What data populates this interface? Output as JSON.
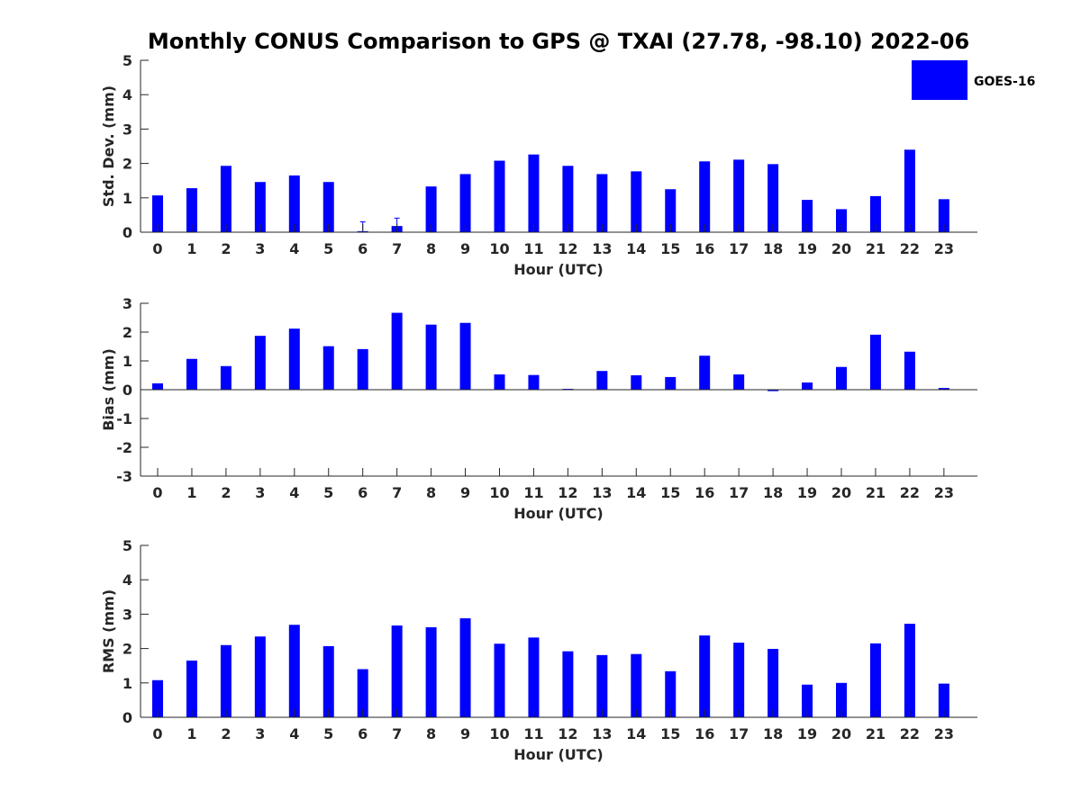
{
  "figure": {
    "title": "Monthly CONUS Comparison to GPS @ TXAI (27.78, -98.10) 2022-06",
    "bar_color": "#0000ff",
    "axis_color": "#262626"
  },
  "legend": {
    "label": "GOES-16",
    "placement": "top-right"
  },
  "chart_data": [
    {
      "type": "bar",
      "ylabel": "Std. Dev. (mm)",
      "xlabel": "Hour (UTC)",
      "ylim": [
        0,
        5
      ],
      "yticks": [
        0,
        1,
        2,
        3,
        4,
        5
      ],
      "categories": [
        "0",
        "1",
        "2",
        "3",
        "4",
        "5",
        "6",
        "7",
        "8",
        "9",
        "10",
        "11",
        "12",
        "13",
        "14",
        "15",
        "16",
        "17",
        "18",
        "19",
        "20",
        "21",
        "22",
        "23"
      ],
      "series": [
        {
          "name": "GOES-16",
          "values": [
            1.07,
            1.28,
            1.93,
            1.46,
            1.65,
            1.46,
            0.03,
            0.18,
            1.33,
            1.69,
            2.08,
            2.26,
            1.93,
            1.69,
            1.77,
            1.25,
            2.06,
            2.11,
            1.98,
            0.94,
            0.67,
            1.05,
            2.4,
            0.96
          ],
          "error_high": [
            0,
            0,
            0,
            0,
            0,
            0,
            0.27,
            0.23,
            0,
            0,
            0,
            0,
            0,
            0,
            0,
            0,
            0,
            0,
            0,
            0,
            0,
            0,
            0,
            0
          ]
        }
      ],
      "grid": false,
      "legend": true
    },
    {
      "type": "bar",
      "ylabel": "Bias (mm)",
      "xlabel": "Hour (UTC)",
      "ylim": [
        -3,
        3
      ],
      "yticks": [
        -3,
        -2,
        -1,
        0,
        1,
        2,
        3
      ],
      "categories": [
        "0",
        "1",
        "2",
        "3",
        "4",
        "5",
        "6",
        "7",
        "8",
        "9",
        "10",
        "11",
        "12",
        "13",
        "14",
        "15",
        "16",
        "17",
        "18",
        "19",
        "20",
        "21",
        "22",
        "23"
      ],
      "series": [
        {
          "name": "GOES-16",
          "values": [
            0.22,
            1.07,
            0.82,
            1.87,
            2.12,
            1.51,
            1.41,
            2.67,
            2.26,
            2.32,
            0.53,
            0.51,
            0.03,
            0.65,
            0.5,
            0.44,
            1.18,
            0.53,
            -0.05,
            0.25,
            0.79,
            1.91,
            1.32,
            0.06
          ]
        }
      ],
      "grid": false,
      "legend": false
    },
    {
      "type": "bar",
      "ylabel": "RMS (mm)",
      "xlabel": "Hour (UTC)",
      "ylim": [
        0,
        5
      ],
      "yticks": [
        0,
        1,
        2,
        3,
        4,
        5
      ],
      "categories": [
        "0",
        "1",
        "2",
        "3",
        "4",
        "5",
        "6",
        "7",
        "8",
        "9",
        "10",
        "11",
        "12",
        "13",
        "14",
        "15",
        "16",
        "17",
        "18",
        "19",
        "20",
        "21",
        "22",
        "23"
      ],
      "series": [
        {
          "name": "GOES-16",
          "values": [
            1.08,
            1.65,
            2.1,
            2.35,
            2.69,
            2.07,
            1.4,
            2.67,
            2.62,
            2.88,
            2.14,
            2.32,
            1.92,
            1.81,
            1.84,
            1.34,
            2.38,
            2.17,
            1.99,
            0.95,
            1.0,
            2.15,
            2.72,
            0.98
          ]
        }
      ],
      "grid": false,
      "legend": false
    }
  ]
}
